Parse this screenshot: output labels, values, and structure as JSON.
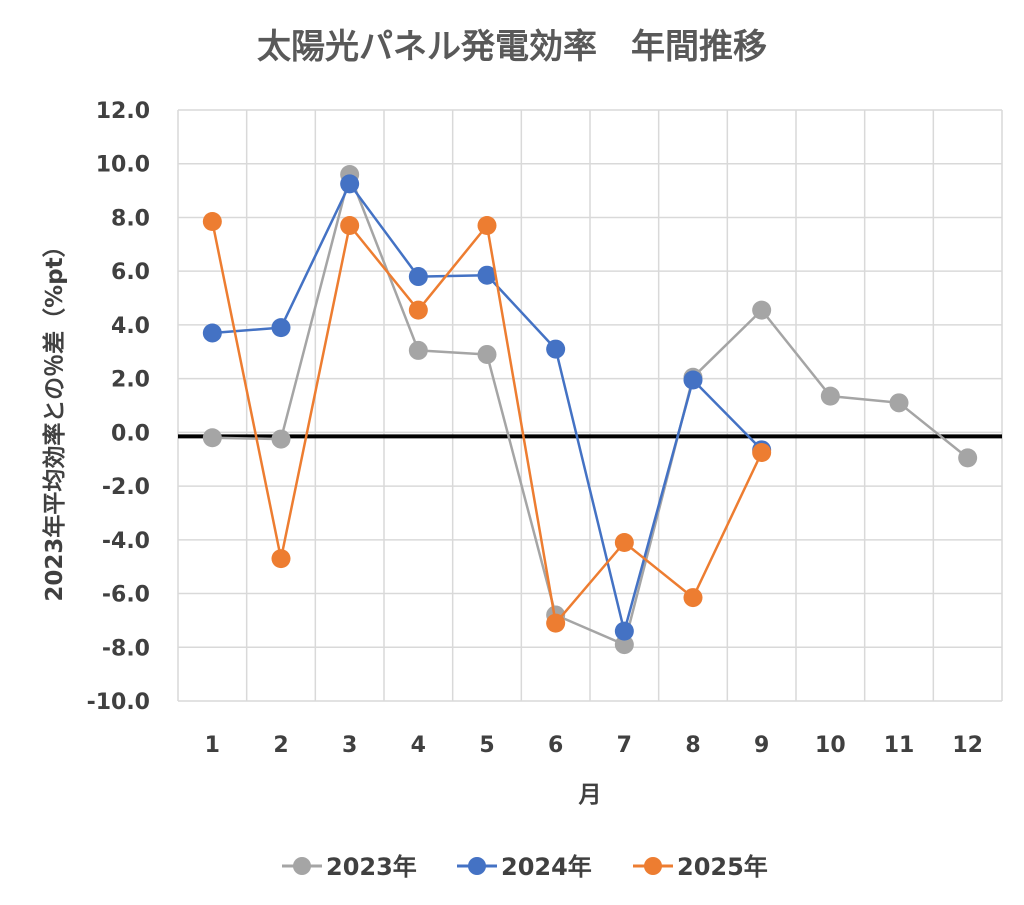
{
  "chart_data": {
    "type": "line",
    "title": "太陽光パネル発電効率　年間推移",
    "xlabel": "月",
    "ylabel": "2023年平均効率との％差（%pt）",
    "categories": [
      "1",
      "2",
      "3",
      "4",
      "5",
      "6",
      "7",
      "8",
      "9",
      "10",
      "11",
      "12"
    ],
    "ylim": [
      -10,
      12
    ],
    "yticks": [
      "12.0",
      "10.0",
      "8.0",
      "6.0",
      "4.0",
      "2.0",
      "0.0",
      "-2.0",
      "-4.0",
      "-6.0",
      "-8.0",
      "-10.0"
    ],
    "grid": true,
    "legend_position": "bottom",
    "baseline": -0.15,
    "series": [
      {
        "name": "2023年",
        "color": "#A5A5A5",
        "values": [
          -0.2,
          -0.25,
          9.6,
          3.05,
          2.9,
          -6.8,
          -7.9,
          2.05,
          4.55,
          1.35,
          1.1,
          -0.95
        ]
      },
      {
        "name": "2024年",
        "color": "#4472C4",
        "values": [
          3.7,
          3.9,
          9.25,
          5.8,
          5.85,
          3.1,
          -7.4,
          1.95,
          -0.65,
          null,
          null,
          null
        ]
      },
      {
        "name": "2025年",
        "color": "#ED7D31",
        "values": [
          7.85,
          -4.7,
          7.7,
          4.55,
          7.7,
          -7.1,
          -4.1,
          -6.15,
          -0.75,
          null,
          null,
          null
        ]
      }
    ]
  }
}
